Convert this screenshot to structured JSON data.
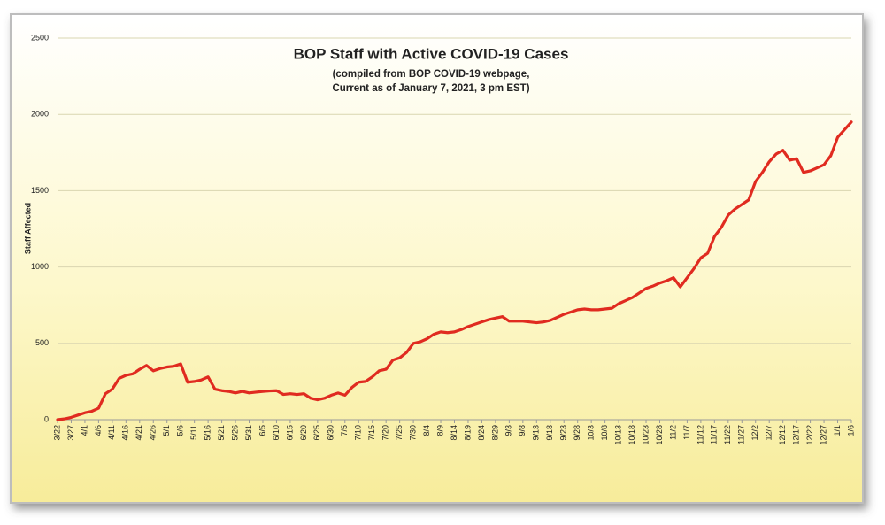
{
  "chart_data": {
    "type": "line",
    "title": "BOP Staff with Active COVID-19 Cases",
    "subtitle": [
      "(compiled from BOP COVID-19 webpage,",
      "Current as of January 7, 2021, 3 pm EST)"
    ],
    "y_label": "Staff Affected",
    "categories": [
      "3/22",
      null,
      "3/27",
      null,
      "4/1",
      null,
      "4/6",
      null,
      "4/11",
      null,
      "4/16",
      null,
      "4/21",
      null,
      "4/26",
      null,
      "5/1",
      null,
      "5/6",
      null,
      "5/11",
      null,
      "5/16",
      null,
      "5/21",
      null,
      "5/26",
      null,
      "5/31",
      null,
      "6/5",
      null,
      "6/10",
      null,
      "6/15",
      null,
      "6/20",
      null,
      "6/25",
      null,
      "6/30",
      null,
      "7/5",
      null,
      "7/10",
      null,
      "7/15",
      null,
      "7/20",
      null,
      "7/25",
      null,
      "7/30",
      null,
      "8/4",
      null,
      "8/9",
      null,
      "8/14",
      null,
      "8/19",
      null,
      "8/24",
      null,
      "8/29",
      null,
      "9/3",
      null,
      "9/8",
      null,
      "9/13",
      null,
      "9/18",
      null,
      "9/23",
      null,
      "9/28",
      null,
      "10/3",
      null,
      "10/8",
      null,
      "10/13",
      null,
      "10/18",
      null,
      "10/23",
      null,
      "10/28",
      null,
      "11/2",
      null,
      "11/7",
      null,
      "11/12",
      null,
      "11/17",
      null,
      "11/22",
      null,
      "11/27",
      null,
      "12/2",
      null,
      "12/7",
      null,
      "12/12",
      null,
      "12/17",
      null,
      "12/22",
      null,
      "12/27",
      null,
      "1/1",
      null,
      "1/6"
    ],
    "series": [
      {
        "name": "Staff Affected",
        "color": "#e02b20",
        "values": [
          0,
          5,
          15,
          30,
          45,
          55,
          75,
          170,
          200,
          270,
          290,
          300,
          330,
          355,
          320,
          335,
          345,
          350,
          365,
          245,
          250,
          260,
          280,
          200,
          190,
          185,
          175,
          185,
          175,
          180,
          185,
          188,
          190,
          165,
          170,
          165,
          170,
          140,
          130,
          140,
          160,
          175,
          160,
          210,
          245,
          250,
          280,
          320,
          330,
          390,
          405,
          440,
          500,
          510,
          530,
          560,
          575,
          570,
          575,
          590,
          610,
          625,
          640,
          655,
          665,
          675,
          645,
          645,
          645,
          640,
          635,
          640,
          650,
          670,
          690,
          705,
          720,
          725,
          720,
          720,
          725,
          730,
          760,
          780,
          800,
          830,
          860,
          875,
          895,
          910,
          930,
          870,
          930,
          990,
          1060,
          1090,
          1200,
          1260,
          1340,
          1380,
          1410,
          1440,
          1560,
          1620,
          1690,
          1740,
          1765,
          1700,
          1710,
          1620,
          1630,
          1650,
          1670,
          1730,
          1850,
          1900,
          1950
        ]
      }
    ],
    "ylim": [
      0,
      2500
    ],
    "yticks": [
      0,
      500,
      1000,
      1500,
      2000,
      2500
    ],
    "grid": true
  }
}
